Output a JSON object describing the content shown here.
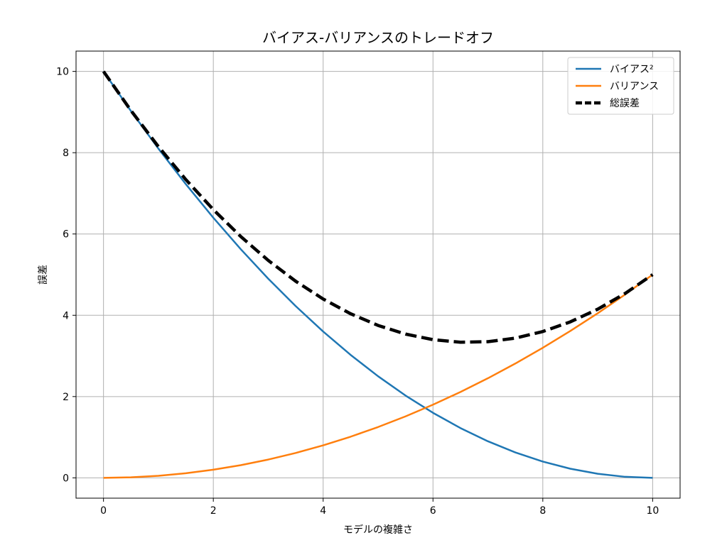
{
  "chart_data": {
    "type": "line",
    "title": "バイアス-バリアンスのトレードオフ",
    "xlabel": "モデルの複雑さ",
    "ylabel": "誤差",
    "xlim": [
      -0.5,
      10.5
    ],
    "ylim": [
      -0.5,
      10.5
    ],
    "xticks": [
      0,
      2,
      4,
      6,
      8,
      10
    ],
    "yticks": [
      0,
      2,
      4,
      6,
      8,
      10
    ],
    "grid": true,
    "legend_position": "top-right",
    "x": [
      0,
      0.5,
      1,
      1.5,
      2,
      2.5,
      3,
      3.5,
      4,
      4.5,
      5,
      5.5,
      6,
      6.5,
      7,
      7.5,
      8,
      8.5,
      9,
      9.5,
      10
    ],
    "series": [
      {
        "name": "バイアス²",
        "color": "#1f77b4",
        "style": "solid",
        "values": [
          10.0,
          9.025,
          8.1,
          7.225,
          6.4,
          5.625,
          4.9,
          4.225,
          3.6,
          3.025,
          2.5,
          2.025,
          1.6,
          1.225,
          0.9,
          0.625,
          0.4,
          0.225,
          0.1,
          0.025,
          0.0
        ]
      },
      {
        "name": "バリアンス",
        "color": "#ff7f0e",
        "style": "solid",
        "values": [
          0.0,
          0.0125,
          0.05,
          0.1125,
          0.2,
          0.3125,
          0.45,
          0.6125,
          0.8,
          1.0125,
          1.25,
          1.5125,
          1.8,
          2.1125,
          2.45,
          2.8125,
          3.2,
          3.6125,
          4.05,
          4.5125,
          5.0
        ]
      },
      {
        "name": "総誤差",
        "color": "#000000",
        "style": "dashed",
        "values": [
          10.0,
          9.0375,
          8.15,
          7.3375,
          6.6,
          5.9375,
          5.35,
          4.8375,
          4.4,
          4.0375,
          3.75,
          3.5375,
          3.4,
          3.3375,
          3.35,
          3.4375,
          3.6,
          3.8375,
          4.15,
          4.5375,
          5.0
        ]
      }
    ]
  }
}
